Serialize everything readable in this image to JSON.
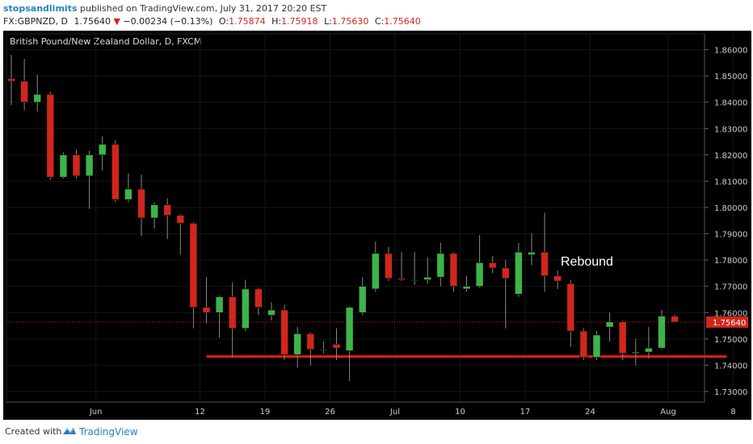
{
  "header": {
    "author": "stopsandlimits",
    "published_text": "published on TradingView.com, July 31, 2017 20:20 EST",
    "symbol": "FX:GBPNZD, D",
    "last": "1.75640",
    "change": "−0.00234 (−0.13%)",
    "o_label": "O:",
    "o_value": "1.75874",
    "h_label": "H:",
    "h_value": "1.75918",
    "l_label": "L:",
    "l_value": "1.75630",
    "c_label": "C:",
    "c_value": "1.75640"
  },
  "footer": {
    "created_with": "Created with",
    "brand": "TradingView"
  },
  "colors": {
    "background": "#000000",
    "up": "#3cb44b",
    "down": "#d0261d",
    "support_line": "#e8191a",
    "axis_text": "#cccccc",
    "last_price_bg": "#d0261d"
  },
  "chart_data": {
    "type": "candlestick",
    "title": "British Pound/New Zealand Dollar, D, FXCM",
    "xlabel": "",
    "ylabel": "",
    "ylim": [
      1.726,
      1.866
    ],
    "y_ticks": [
      "1.86000",
      "1.85000",
      "1.84000",
      "1.83000",
      "1.82000",
      "1.81000",
      "1.80000",
      "1.79000",
      "1.78000",
      "1.77000",
      "1.76000",
      "1.75000",
      "1.74000",
      "1.73000"
    ],
    "x_ticks": [
      {
        "label": "Jun",
        "index": 6.5
      },
      {
        "label": "12",
        "index": 14.5
      },
      {
        "label": "19",
        "index": 19.5
      },
      {
        "label": "26",
        "index": 24.5
      },
      {
        "label": "Jul",
        "index": 29.5
      },
      {
        "label": "10",
        "index": 34.5
      },
      {
        "label": "17",
        "index": 39.5
      },
      {
        "label": "24",
        "index": 44.5
      },
      {
        "label": "Aug",
        "index": 50.5
      },
      {
        "label": "8",
        "index": 55.5
      }
    ],
    "last_price": "1.75640",
    "annotation": "Rebound",
    "support_level": 1.7433,
    "support_from_index": 15,
    "support_to_index": 55,
    "candles": [
      {
        "o": 1.849,
        "h": 1.858,
        "l": 1.839,
        "c": 1.848
      },
      {
        "o": 1.848,
        "h": 1.8565,
        "l": 1.837,
        "c": 1.84
      },
      {
        "o": 1.84,
        "h": 1.8505,
        "l": 1.8365,
        "c": 1.843
      },
      {
        "o": 1.843,
        "h": 1.844,
        "l": 1.8105,
        "c": 1.8115
      },
      {
        "o": 1.8115,
        "h": 1.821,
        "l": 1.811,
        "c": 1.82
      },
      {
        "o": 1.82,
        "h": 1.822,
        "l": 1.811,
        "c": 1.812
      },
      {
        "o": 1.812,
        "h": 1.8215,
        "l": 1.7995,
        "c": 1.82
      },
      {
        "o": 1.82,
        "h": 1.827,
        "l": 1.814,
        "c": 1.824
      },
      {
        "o": 1.824,
        "h": 1.8255,
        "l": 1.802,
        "c": 1.803
      },
      {
        "o": 1.803,
        "h": 1.813,
        "l": 1.802,
        "c": 1.807
      },
      {
        "o": 1.807,
        "h": 1.8125,
        "l": 1.789,
        "c": 1.796
      },
      {
        "o": 1.796,
        "h": 1.802,
        "l": 1.792,
        "c": 1.801
      },
      {
        "o": 1.801,
        "h": 1.8035,
        "l": 1.788,
        "c": 1.797
      },
      {
        "o": 1.797,
        "h": 1.7975,
        "l": 1.782,
        "c": 1.794
      },
      {
        "o": 1.794,
        "h": 1.7945,
        "l": 1.754,
        "c": 1.762
      },
      {
        "o": 1.762,
        "h": 1.7735,
        "l": 1.756,
        "c": 1.76
      },
      {
        "o": 1.76,
        "h": 1.7665,
        "l": 1.7505,
        "c": 1.766
      },
      {
        "o": 1.766,
        "h": 1.7715,
        "l": 1.743,
        "c": 1.754
      },
      {
        "o": 1.754,
        "h": 1.7725,
        "l": 1.753,
        "c": 1.769
      },
      {
        "o": 1.769,
        "h": 1.7695,
        "l": 1.759,
        "c": 1.762
      },
      {
        "o": 1.759,
        "h": 1.764,
        "l": 1.757,
        "c": 1.761
      },
      {
        "o": 1.761,
        "h": 1.763,
        "l": 1.742,
        "c": 1.744
      },
      {
        "o": 1.744,
        "h": 1.7545,
        "l": 1.739,
        "c": 1.752
      },
      {
        "o": 1.752,
        "h": 1.7525,
        "l": 1.74,
        "c": 1.746
      },
      {
        "o": 1.746,
        "h": 1.749,
        "l": 1.7445,
        "c": 1.746
      },
      {
        "o": 1.748,
        "h": 1.754,
        "l": 1.742,
        "c": 1.7465
      },
      {
        "o": 1.7455,
        "h": 1.7625,
        "l": 1.734,
        "c": 1.762
      },
      {
        "o": 1.76,
        "h": 1.7735,
        "l": 1.759,
        "c": 1.77
      },
      {
        "o": 1.769,
        "h": 1.787,
        "l": 1.768,
        "c": 1.7825
      },
      {
        "o": 1.7825,
        "h": 1.785,
        "l": 1.772,
        "c": 1.773
      },
      {
        "o": 1.773,
        "h": 1.783,
        "l": 1.772,
        "c": 1.7725
      },
      {
        "o": 1.7725,
        "h": 1.783,
        "l": 1.7705,
        "c": 1.7725
      },
      {
        "o": 1.7725,
        "h": 1.781,
        "l": 1.771,
        "c": 1.7735
      },
      {
        "o": 1.7735,
        "h": 1.7865,
        "l": 1.77,
        "c": 1.7825
      },
      {
        "o": 1.7825,
        "h": 1.783,
        "l": 1.768,
        "c": 1.77
      },
      {
        "o": 1.769,
        "h": 1.774,
        "l": 1.768,
        "c": 1.77
      },
      {
        "o": 1.77,
        "h": 1.7895,
        "l": 1.7695,
        "c": 1.779
      },
      {
        "o": 1.779,
        "h": 1.7815,
        "l": 1.775,
        "c": 1.777
      },
      {
        "o": 1.777,
        "h": 1.78,
        "l": 1.754,
        "c": 1.773
      },
      {
        "o": 1.767,
        "h": 1.7865,
        "l": 1.766,
        "c": 1.783
      },
      {
        "o": 1.782,
        "h": 1.79,
        "l": 1.778,
        "c": 1.783
      },
      {
        "o": 1.783,
        "h": 1.798,
        "l": 1.768,
        "c": 1.774
      },
      {
        "o": 1.774,
        "h": 1.776,
        "l": 1.769,
        "c": 1.772
      },
      {
        "o": 1.771,
        "h": 1.7725,
        "l": 1.747,
        "c": 1.753
      },
      {
        "o": 1.753,
        "h": 1.754,
        "l": 1.742,
        "c": 1.743
      },
      {
        "o": 1.743,
        "h": 1.753,
        "l": 1.742,
        "c": 1.7515
      },
      {
        "o": 1.7545,
        "h": 1.76,
        "l": 1.749,
        "c": 1.7565
      },
      {
        "o": 1.7565,
        "h": 1.757,
        "l": 1.742,
        "c": 1.7445
      },
      {
        "o": 1.7445,
        "h": 1.75,
        "l": 1.74,
        "c": 1.745
      },
      {
        "o": 1.745,
        "h": 1.7545,
        "l": 1.7425,
        "c": 1.7465
      },
      {
        "o": 1.7465,
        "h": 1.761,
        "l": 1.746,
        "c": 1.7587
      },
      {
        "o": 1.7587,
        "h": 1.7592,
        "l": 1.7563,
        "c": 1.7564
      }
    ]
  }
}
